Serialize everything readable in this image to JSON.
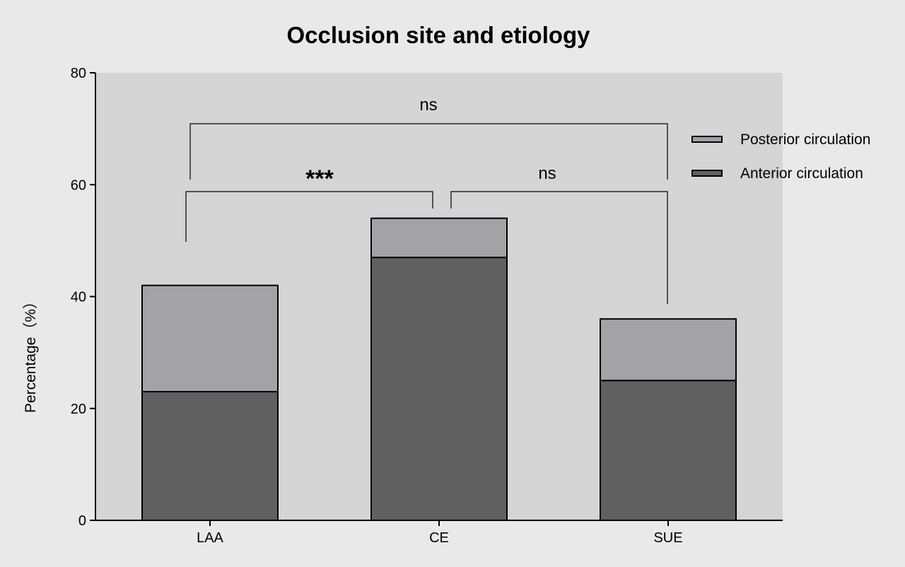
{
  "chart_data": {
    "type": "bar",
    "stacked": true,
    "title": "Occlusion site and etiology",
    "xlabel": "",
    "ylabel": "Percentage（%）",
    "categories": [
      "LAA",
      "CE",
      "SUE"
    ],
    "series": [
      {
        "name": "Anterior circulation",
        "values": [
          23,
          47,
          25
        ],
        "color": "#606060"
      },
      {
        "name": "Posterior circulation",
        "values": [
          19,
          7,
          11
        ],
        "color": "#a3a2a7"
      }
    ],
    "ylim": [
      0,
      80
    ],
    "yticks": [
      0,
      20,
      40,
      60,
      80
    ],
    "grid": false,
    "legend_position": "right",
    "legend_order": [
      "Posterior circulation",
      "Anterior circulation"
    ],
    "plot_background": "#d5d5d5",
    "page_background": "#e9e9e9",
    "significance": [
      {
        "from": "LAA",
        "to": "CE",
        "label": "***"
      },
      {
        "from": "CE",
        "to": "SUE",
        "label": "ns"
      },
      {
        "from": "LAA",
        "to": "SUE",
        "label": "ns"
      }
    ]
  }
}
